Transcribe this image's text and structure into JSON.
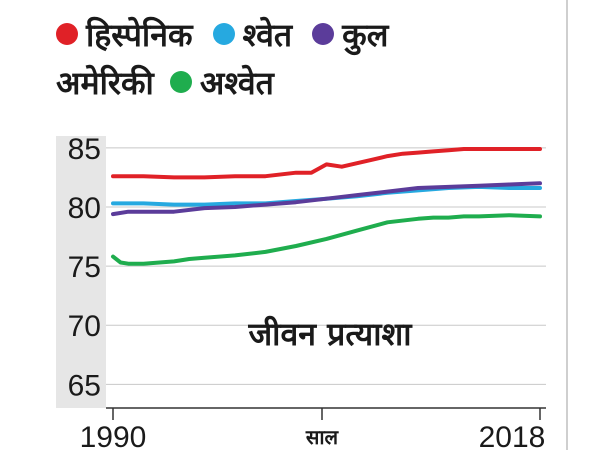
{
  "chart_data": {
    "type": "line",
    "title": "जीवन प्रत्याशा",
    "xlabel": "साल",
    "ylabel": "",
    "xlim": [
      1990,
      2018
    ],
    "ylim": [
      63,
      86
    ],
    "x_tick_labels": [
      "1990",
      "2018"
    ],
    "y_ticks": [
      65,
      70,
      75,
      80,
      85
    ],
    "grid": true,
    "legend_position": "top-left",
    "series": [
      {
        "name": "हिस्पेनिक",
        "color": "#e02127",
        "x": [
          1990,
          1992,
          1994,
          1996,
          1998,
          2000,
          2002,
          2003,
          2004,
          2005,
          2006,
          2007,
          2008,
          2009,
          2010,
          2011,
          2012,
          2013,
          2014,
          2015,
          2016,
          2017,
          2018
        ],
        "y": [
          82.6,
          82.6,
          82.5,
          82.5,
          82.6,
          82.6,
          82.9,
          82.9,
          83.6,
          83.4,
          83.7,
          84.0,
          84.3,
          84.5,
          84.6,
          84.7,
          84.8,
          84.9,
          84.9,
          84.9,
          84.9,
          84.9,
          84.9
        ]
      },
      {
        "name": "श्वेत",
        "color": "#26a9e0",
        "x": [
          1990,
          1992,
          1994,
          1996,
          1998,
          2000,
          2002,
          2004,
          2006,
          2008,
          2010,
          2012,
          2014,
          2016,
          2018
        ],
        "y": [
          80.3,
          80.3,
          80.2,
          80.2,
          80.3,
          80.3,
          80.5,
          80.7,
          80.9,
          81.2,
          81.4,
          81.6,
          81.7,
          81.6,
          81.6
        ]
      },
      {
        "name": "कुल अमेरिकी",
        "color": "#5b3c9a",
        "x": [
          1990,
          1991,
          1992,
          1994,
          1996,
          1998,
          2000,
          2002,
          2004,
          2006,
          2008,
          2010,
          2012,
          2014,
          2016,
          2018
        ],
        "y": [
          79.4,
          79.6,
          79.6,
          79.6,
          79.9,
          80.0,
          80.2,
          80.4,
          80.7,
          81.0,
          81.3,
          81.6,
          81.7,
          81.8,
          81.9,
          82.0
        ]
      },
      {
        "name": "अश्वेत",
        "color": "#1fad4e",
        "x": [
          1990,
          1990.5,
          1991,
          1992,
          1994,
          1995,
          1996,
          1998,
          2000,
          2002,
          2004,
          2006,
          2008,
          2010,
          2011,
          2012,
          2013,
          2014,
          2016,
          2018
        ],
        "y": [
          75.8,
          75.3,
          75.2,
          75.2,
          75.4,
          75.6,
          75.7,
          75.9,
          76.2,
          76.7,
          77.3,
          78.0,
          78.7,
          79.0,
          79.1,
          79.1,
          79.2,
          79.2,
          79.3,
          79.2
        ]
      }
    ]
  }
}
